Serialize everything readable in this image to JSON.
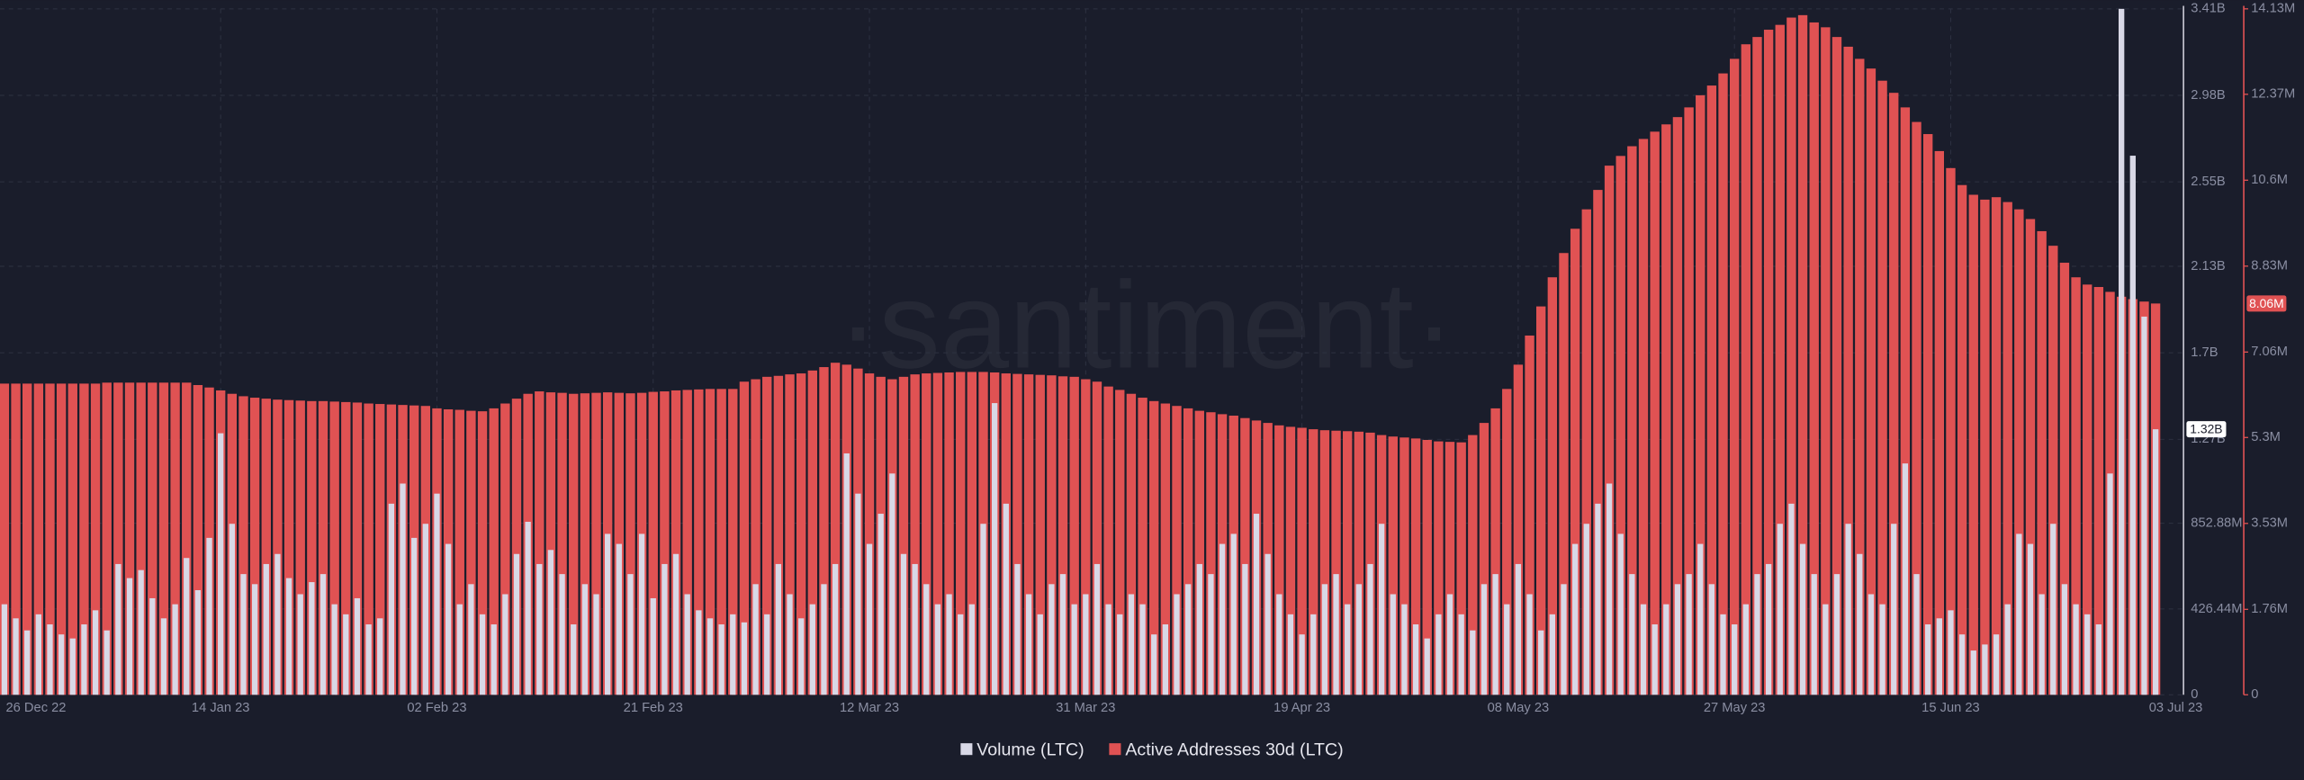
{
  "chart_data": {
    "type": "bar",
    "watermark": "·santiment·",
    "categories": [
      "26 Dec 22",
      null,
      null,
      null,
      null,
      null,
      null,
      null,
      null,
      null,
      null,
      null,
      null,
      null,
      null,
      null,
      null,
      null,
      null,
      "14 Jan 23",
      null,
      null,
      null,
      null,
      null,
      null,
      null,
      null,
      null,
      null,
      null,
      null,
      null,
      null,
      null,
      null,
      null,
      null,
      "02 Feb 23",
      null,
      null,
      null,
      null,
      null,
      null,
      null,
      null,
      null,
      null,
      null,
      null,
      null,
      null,
      null,
      null,
      null,
      null,
      "21 Feb 23",
      null,
      null,
      null,
      null,
      null,
      null,
      null,
      null,
      null,
      null,
      null,
      null,
      null,
      null,
      null,
      null,
      null,
      null,
      "12 Mar 23",
      null,
      null,
      null,
      null,
      null,
      null,
      null,
      null,
      null,
      null,
      null,
      null,
      null,
      null,
      null,
      null,
      null,
      null,
      "31 Mar 23",
      null,
      null,
      null,
      null,
      null,
      null,
      null,
      null,
      null,
      null,
      null,
      null,
      null,
      null,
      null,
      null,
      null,
      null,
      "19 Apr 23",
      null,
      null,
      null,
      null,
      null,
      null,
      null,
      null,
      null,
      null,
      null,
      null,
      null,
      null,
      null,
      null,
      null,
      null,
      "08 May 23",
      null,
      null,
      null,
      null,
      null,
      null,
      null,
      null,
      null,
      null,
      null,
      null,
      null,
      null,
      null,
      null,
      null,
      null,
      "27 May 23",
      null,
      null,
      null,
      null,
      null,
      null,
      null,
      null,
      null,
      null,
      null,
      null,
      null,
      null,
      null,
      null,
      null,
      null,
      "15 Jun 23",
      null,
      null,
      null,
      null,
      null,
      null,
      null,
      null,
      null,
      null,
      null,
      null,
      null,
      null,
      null,
      null,
      null,
      "03 Jul 23"
    ],
    "series": [
      {
        "name": "Active Addresses 30d (LTC)",
        "color": "#e05253",
        "axis": "y2",
        "values": [
          6410000.0,
          6410000.0,
          6410000.0,
          6410000.0,
          6410000.0,
          6410000.0,
          6410000.0,
          6410000.0,
          6410000.0,
          6430000.0,
          6430000.0,
          6430000.0,
          6430000.0,
          6430000.0,
          6430000.0,
          6430000.0,
          6430000.0,
          6380000.0,
          6330000.0,
          6270000.0,
          6200000.0,
          6150000.0,
          6120000.0,
          6100000.0,
          6080000.0,
          6070000.0,
          6060000.0,
          6050000.0,
          6050000.0,
          6040000.0,
          6030000.0,
          6020000.0,
          6000000.0,
          5990000.0,
          5980000.0,
          5970000.0,
          5960000.0,
          5950000.0,
          5900000.0,
          5880000.0,
          5870000.0,
          5850000.0,
          5840000.0,
          5900000.0,
          6000000.0,
          6100000.0,
          6200000.0,
          6250000.0,
          6230000.0,
          6220000.0,
          6200000.0,
          6210000.0,
          6220000.0,
          6230000.0,
          6220000.0,
          6210000.0,
          6220000.0,
          6240000.0,
          6250000.0,
          6270000.0,
          6280000.0,
          6290000.0,
          6300000.0,
          6300000.0,
          6300000.0,
          6450000.0,
          6500000.0,
          6550000.0,
          6570000.0,
          6600000.0,
          6620000.0,
          6680000.0,
          6750000.0,
          6840000.0,
          6800000.0,
          6720000.0,
          6620000.0,
          6550000.0,
          6500000.0,
          6550000.0,
          6600000.0,
          6620000.0,
          6630000.0,
          6640000.0,
          6650000.0,
          6650000.0,
          6650000.0,
          6640000.0,
          6620000.0,
          6610000.0,
          6600000.0,
          6590000.0,
          6580000.0,
          6560000.0,
          6550000.0,
          6500000.0,
          6450000.0,
          6350000.0,
          6280000.0,
          6200000.0,
          6120000.0,
          6050000.0,
          6000000.0,
          5950000.0,
          5900000.0,
          5850000.0,
          5820000.0,
          5780000.0,
          5750000.0,
          5700000.0,
          5650000.0,
          5600000.0,
          5550000.0,
          5520000.0,
          5500000.0,
          5470000.0,
          5450000.0,
          5440000.0,
          5430000.0,
          5420000.0,
          5400000.0,
          5350000.0,
          5320000.0,
          5300000.0,
          5280000.0,
          5250000.0,
          5220000.0,
          5210000.0,
          5200000.0,
          5350000.0,
          5600000.0,
          5900000.0,
          6300000.0,
          6800000.0,
          7400000.0,
          8000000.0,
          8600000.0,
          9100000.0,
          9600000.0,
          10000000.0,
          10400000.0,
          10900000.0,
          11100000.0,
          11300000.0,
          11450000.0,
          11600000.0,
          11750000.0,
          11900000.0,
          12100000.0,
          12350000.0,
          12550000.0,
          12800000.0,
          13100000.0,
          13400000.0,
          13550000.0,
          13700000.0,
          13800000.0,
          13950000.0,
          14000000.0,
          13850000.0,
          13750000.0,
          13550000.0,
          13350000.0,
          13100000.0,
          12900000.0,
          12650000.0,
          12400000.0,
          12100000.0,
          11800000.0,
          11550000.0,
          11200000.0,
          10850000.0,
          10500000.0,
          10300000.0,
          10200000.0,
          10250000.0,
          10150000.0,
          10000000.0,
          9800000.0,
          9550000.0,
          9250000.0,
          8900000.0,
          8600000.0,
          8450000.0,
          8400000.0,
          8300000.0,
          8200000.0,
          8150000.0,
          8100000.0,
          8060000.0
        ],
        "value_labels": [
          null,
          null,
          null,
          null,
          null,
          null,
          null,
          null,
          null,
          null,
          null,
          null,
          null,
          null,
          null,
          null,
          null,
          null,
          null,
          null,
          null,
          null,
          null,
          null,
          null,
          null,
          null,
          null,
          null,
          null,
          null,
          null,
          null,
          null,
          null,
          null,
          null,
          null,
          null,
          null,
          null,
          null,
          null,
          null,
          null,
          null,
          null,
          null,
          null,
          null,
          null,
          null,
          null,
          null,
          null,
          null,
          null,
          null,
          null,
          null,
          null,
          null,
          null,
          null,
          null,
          null,
          null,
          null,
          null,
          null,
          null,
          null,
          null,
          null,
          null,
          null,
          null,
          null,
          null,
          null,
          null,
          null,
          null,
          null,
          null,
          null,
          null,
          null,
          null,
          null,
          null,
          null,
          null,
          null,
          null,
          null,
          null,
          null,
          null,
          null,
          null,
          null,
          null,
          null,
          null,
          null,
          null,
          null,
          null,
          null,
          null,
          null,
          null,
          null,
          null,
          null,
          null,
          null,
          null,
          null,
          null,
          null,
          null,
          null,
          null,
          null,
          null,
          null,
          null,
          null,
          null,
          null,
          null,
          null,
          null,
          null,
          null,
          null,
          null,
          null,
          null,
          null,
          null,
          null,
          null,
          null,
          null,
          null,
          null,
          null,
          null,
          null,
          null,
          null,
          null,
          null,
          null,
          null,
          null,
          null,
          null,
          null,
          null,
          null,
          null,
          null,
          null,
          null,
          null,
          null,
          null,
          null,
          null,
          null,
          null,
          null,
          null,
          null,
          null,
          null,
          null,
          null,
          null,
          null,
          null,
          null,
          null,
          null,
          null,
          "8.06M"
        ]
      },
      {
        "name": "Volume (LTC)",
        "color": "#d8d8e6",
        "values": [
          450000000.0,
          380000000.0,
          320000000.0,
          400000000.0,
          350000000.0,
          300000000.0,
          280000000.0,
          350000000.0,
          420000000.0,
          320000000.0,
          650000000.0,
          580000000.0,
          620000000.0,
          480000000.0,
          380000000.0,
          450000000.0,
          680000000.0,
          520000000.0,
          780000000.0,
          1300000000.0,
          850000000.0,
          600000000.0,
          550000000.0,
          650000000.0,
          700000000.0,
          580000000.0,
          500000000.0,
          560000000.0,
          600000000.0,
          450000000.0,
          400000000.0,
          480000000.0,
          350000000.0,
          380000000.0,
          950000000.0,
          1050000000.0,
          780000000.0,
          850000000.0,
          1000000000.0,
          750000000.0,
          450000000.0,
          550000000.0,
          400000000.0,
          350000000.0,
          500000000.0,
          700000000.0,
          860000000.0,
          650000000.0,
          720000000.0,
          600000000.0,
          350000000.0,
          550000000.0,
          500000000.0,
          800000000.0,
          750000000.0,
          600000000.0,
          800000000.0,
          480000000.0,
          650000000.0,
          700000000.0,
          500000000.0,
          420000000.0,
          380000000.0,
          350000000.0,
          400000000.0,
          360000000.0,
          550000000.0,
          400000000.0,
          650000000.0,
          500000000.0,
          380000000.0,
          450000000.0,
          550000000.0,
          650000000.0,
          1200000000.0,
          1000000000.0,
          750000000.0,
          900000000.0,
          1100000000.0,
          700000000.0,
          650000000.0,
          550000000.0,
          450000000.0,
          500000000.0,
          400000000.0,
          450000000.0,
          850000000.0,
          1450000000.0,
          950000000.0,
          650000000.0,
          500000000.0,
          400000000.0,
          550000000.0,
          600000000.0,
          450000000.0,
          500000000.0,
          650000000.0,
          450000000.0,
          400000000.0,
          500000000.0,
          450000000.0,
          300000000.0,
          350000000.0,
          500000000.0,
          550000000.0,
          650000000.0,
          600000000.0,
          750000000.0,
          800000000.0,
          650000000.0,
          900000000.0,
          700000000.0,
          500000000.0,
          400000000.0,
          300000000.0,
          400000000.0,
          550000000.0,
          600000000.0,
          450000000.0,
          550000000.0,
          650000000.0,
          850000000.0,
          500000000.0,
          450000000.0,
          350000000.0,
          280000000.0,
          400000000.0,
          500000000.0,
          400000000.0,
          320000000.0,
          550000000.0,
          600000000.0,
          450000000.0,
          650000000.0,
          500000000.0,
          320000000.0,
          400000000.0,
          550000000.0,
          750000000.0,
          850000000.0,
          950000000.0,
          1050000000.0,
          800000000.0,
          600000000.0,
          450000000.0,
          350000000.0,
          450000000.0,
          550000000.0,
          600000000.0,
          750000000.0,
          550000000.0,
          400000000.0,
          350000000.0,
          450000000.0,
          600000000.0,
          650000000.0,
          850000000.0,
          950000000.0,
          750000000.0,
          600000000.0,
          450000000.0,
          600000000.0,
          850000000.0,
          700000000.0,
          500000000.0,
          450000000.0,
          850000000.0,
          1150000000.0,
          600000000.0,
          350000000.0,
          380000000.0,
          420000000.0,
          300000000.0,
          220000000.0,
          250000000.0,
          300000000.0,
          450000000.0,
          800000000.0,
          750000000.0,
          500000000.0,
          850000000.0,
          550000000.0,
          450000000.0,
          400000000.0,
          350000000.0,
          1100000000.0,
          3410000000.0,
          2680000000.0,
          1880000000.0,
          1320000000.0
        ],
        "value_labels": [
          null,
          null,
          null,
          null,
          null,
          null,
          null,
          null,
          null,
          null,
          null,
          null,
          null,
          null,
          null,
          null,
          null,
          null,
          null,
          null,
          null,
          null,
          null,
          null,
          null,
          null,
          null,
          null,
          null,
          null,
          null,
          null,
          null,
          null,
          null,
          null,
          null,
          null,
          null,
          null,
          null,
          null,
          null,
          null,
          null,
          null,
          null,
          null,
          null,
          null,
          null,
          null,
          null,
          null,
          null,
          null,
          null,
          null,
          null,
          null,
          null,
          null,
          null,
          null,
          null,
          null,
          null,
          null,
          null,
          null,
          null,
          null,
          null,
          null,
          null,
          null,
          null,
          null,
          null,
          null,
          null,
          null,
          null,
          null,
          null,
          null,
          null,
          null,
          null,
          null,
          null,
          null,
          null,
          null,
          null,
          null,
          null,
          null,
          null,
          null,
          null,
          null,
          null,
          null,
          null,
          null,
          null,
          null,
          null,
          null,
          null,
          null,
          null,
          null,
          null,
          null,
          null,
          null,
          null,
          null,
          null,
          null,
          null,
          null,
          null,
          null,
          null,
          null,
          null,
          null,
          null,
          null,
          null,
          null,
          null,
          null,
          null,
          null,
          null,
          null,
          null,
          null,
          null,
          null,
          null,
          null,
          null,
          null,
          null,
          null,
          null,
          null,
          null,
          null,
          null,
          null,
          null,
          null,
          null,
          null,
          null,
          null,
          null,
          null,
          null,
          null,
          null,
          null,
          null,
          null,
          null,
          null,
          null,
          null,
          null,
          null,
          null,
          null,
          null,
          null,
          null,
          null,
          null,
          null,
          null,
          null,
          null,
          null,
          null,
          "1.32B"
        ]
      }
    ],
    "ylim": [
      0,
      3410000000
    ],
    "yticks": [
      0,
      {
        "value": 426440000,
        "label": "426.44M"
      },
      {
        "value": 852880000,
        "label": "852.88M"
      },
      {
        "value": 1270000000,
        "label": "1.27B"
      },
      {
        "value": 1700000000,
        "label": "1.7B"
      },
      {
        "value": 2130000000,
        "label": "2.13B"
      },
      {
        "value": 2550000000,
        "label": "2.55B"
      },
      {
        "value": 2980000000,
        "label": "2.98B"
      },
      {
        "value": 3410000000,
        "label": "3.41B"
      }
    ],
    "y2lim": [
      0,
      14130000
    ],
    "y2ticks": [
      0,
      {
        "value": 1760000,
        "label": "1.76M"
      },
      {
        "value": 3530000,
        "label": "3.53M"
      },
      {
        "value": 5300000,
        "label": "5.3M"
      },
      {
        "value": 7060000,
        "label": "7.06M"
      },
      {
        "value": 8830000,
        "label": "8.83M"
      },
      {
        "value": 10600000,
        "label": "10.6M"
      },
      {
        "value": 12370000,
        "label": "12.37M"
      },
      {
        "value": 14130000,
        "label": "14.13M"
      }
    ],
    "grid": true,
    "legend": "bottom"
  }
}
